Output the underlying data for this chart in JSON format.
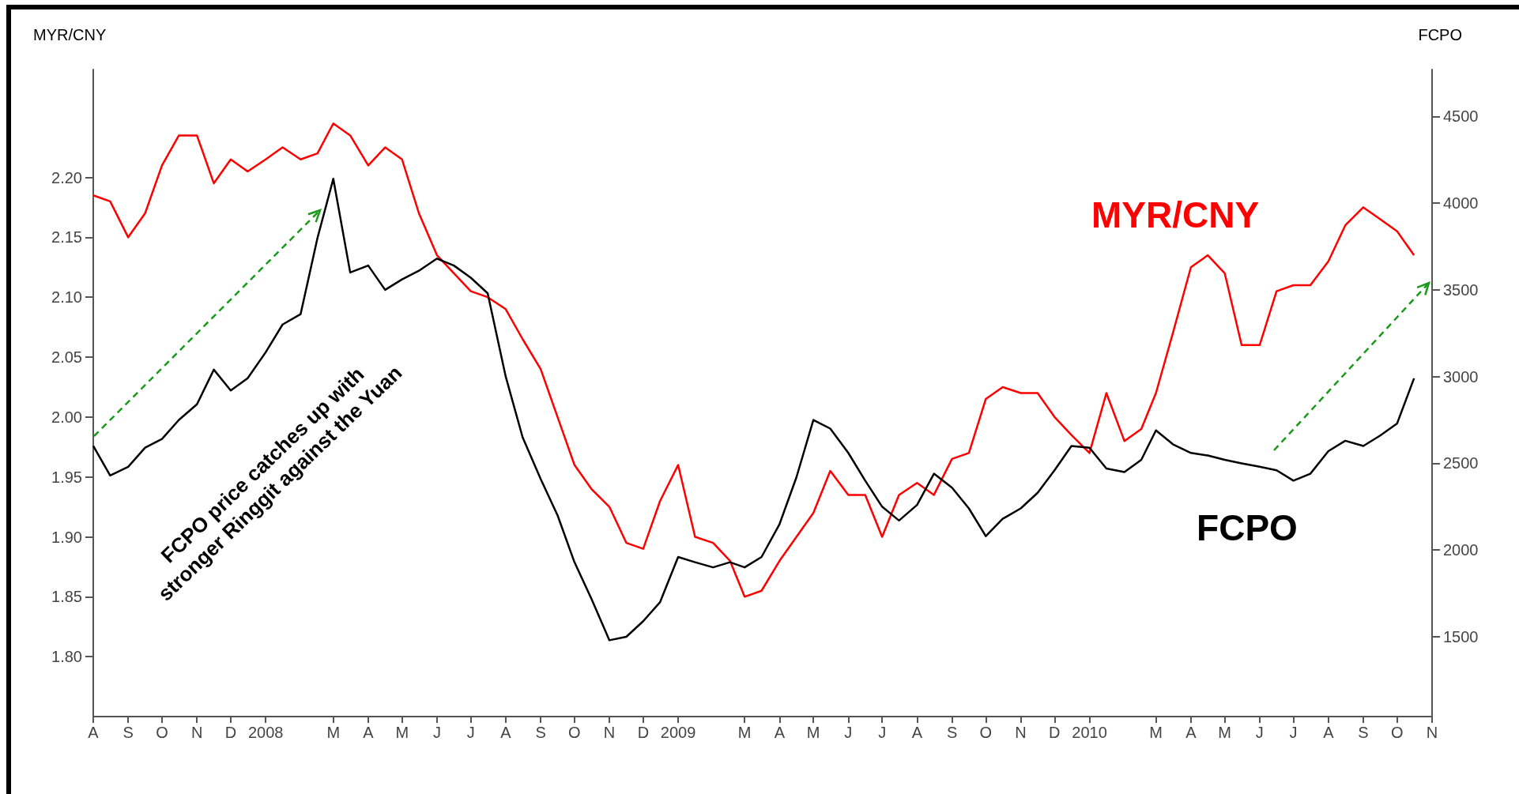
{
  "chart_data": {
    "type": "line",
    "ylabel": "MYR/CNY",
    "y2label": "FCPO",
    "annotations": [
      "FCPO price catches up with\nstronger Ringgit against the Yuan"
    ],
    "x": [
      "2007-08-01",
      "2007-08-16",
      "2007-09-01",
      "2007-09-16",
      "2007-10-01",
      "2007-10-16",
      "2007-11-01",
      "2007-11-16",
      "2007-12-01",
      "2007-12-16",
      "2008-01-01",
      "2008-01-16",
      "2008-02-01",
      "2008-02-16",
      "2008-03-01",
      "2008-03-16",
      "2008-04-01",
      "2008-04-16",
      "2008-05-01",
      "2008-05-16",
      "2008-06-01",
      "2008-06-16",
      "2008-07-01",
      "2008-07-16",
      "2008-08-01",
      "2008-08-16",
      "2008-09-01",
      "2008-09-16",
      "2008-10-01",
      "2008-10-16",
      "2008-11-01",
      "2008-11-16",
      "2008-12-01",
      "2008-12-16",
      "2009-01-01",
      "2009-01-16",
      "2009-02-01",
      "2009-02-16",
      "2009-03-01",
      "2009-03-16",
      "2009-04-01",
      "2009-04-16",
      "2009-05-01",
      "2009-05-16",
      "2009-06-01",
      "2009-06-16",
      "2009-07-01",
      "2009-07-16",
      "2009-08-01",
      "2009-08-16",
      "2009-09-01",
      "2009-09-16",
      "2009-10-01",
      "2009-10-16",
      "2009-11-01",
      "2009-11-16",
      "2009-12-01",
      "2009-12-16",
      "2010-01-01",
      "2010-01-16",
      "2010-02-01",
      "2010-02-16",
      "2010-03-01",
      "2010-03-16",
      "2010-04-01",
      "2010-04-16",
      "2010-05-01",
      "2010-05-16",
      "2010-06-01",
      "2010-06-16",
      "2010-07-01",
      "2010-07-16",
      "2010-08-01",
      "2010-08-16",
      "2010-09-01",
      "2010-09-16",
      "2010-10-01",
      "2010-10-16"
    ],
    "series": [
      {
        "name": "MYR/CNY",
        "color": "#ff0000",
        "values": [
          2.185,
          2.18,
          2.15,
          2.17,
          2.21,
          2.235,
          2.235,
          2.195,
          2.215,
          2.205,
          2.215,
          2.225,
          2.215,
          2.22,
          2.245,
          2.235,
          2.21,
          2.225,
          2.215,
          2.17,
          2.135,
          2.12,
          2.105,
          2.1,
          2.09,
          2.065,
          2.04,
          2.0,
          1.96,
          1.94,
          1.925,
          1.895,
          1.89,
          1.93,
          1.96,
          1.9,
          1.895,
          1.88,
          1.85,
          1.855,
          1.88,
          1.9,
          1.92,
          1.955,
          1.935,
          1.935,
          1.9,
          1.935,
          1.945,
          1.935,
          1.965,
          1.97,
          2.015,
          2.025,
          2.02,
          2.02,
          2.0,
          1.985,
          1.97,
          2.02,
          1.98,
          1.99,
          2.02,
          2.07,
          2.125,
          2.135,
          2.12,
          2.06,
          2.06,
          2.105,
          2.11,
          2.11,
          2.13,
          2.16,
          2.175,
          2.165,
          2.155,
          2.135
        ]
      },
      {
        "name": "FCPO",
        "color": "#000000",
        "axis": "y2",
        "values": [
          2600,
          2430,
          2480,
          2590,
          2640,
          2750,
          2840,
          3040,
          2920,
          2990,
          3140,
          3300,
          3360,
          3800,
          4140,
          3600,
          3640,
          3500,
          3560,
          3610,
          3680,
          3640,
          3570,
          3480,
          3000,
          2650,
          2410,
          2200,
          1930,
          1720,
          1480,
          1500,
          1590,
          1700,
          1960,
          1930,
          1900,
          1930,
          1900,
          1960,
          2150,
          2420,
          2750,
          2700,
          2560,
          2400,
          2250,
          2170,
          2260,
          2440,
          2360,
          2240,
          2080,
          2180,
          2240,
          2330,
          2460,
          2600,
          2590,
          2470,
          2450,
          2520,
          2690,
          2610,
          2560,
          2545,
          2520,
          2500,
          2480,
          2460,
          2400,
          2440,
          2570,
          2630,
          2600,
          2660,
          2730,
          2990
        ]
      }
    ],
    "xlim": [
      "2007-08-01",
      "2010-11-01"
    ],
    "xticks": [
      {
        "value": "2007-08-01",
        "label": "A"
      },
      {
        "value": "2007-09-01",
        "label": "S"
      },
      {
        "value": "2007-10-01",
        "label": "O"
      },
      {
        "value": "2007-11-01",
        "label": "N"
      },
      {
        "value": "2007-12-01",
        "label": "D"
      },
      {
        "value": "2008-01-01",
        "label": "2008"
      },
      {
        "value": "2008-03-01",
        "label": "M"
      },
      {
        "value": "2008-04-01",
        "label": "A"
      },
      {
        "value": "2008-05-01",
        "label": "M"
      },
      {
        "value": "2008-06-01",
        "label": "J"
      },
      {
        "value": "2008-07-01",
        "label": "J"
      },
      {
        "value": "2008-08-01",
        "label": "A"
      },
      {
        "value": "2008-09-01",
        "label": "S"
      },
      {
        "value": "2008-10-01",
        "label": "O"
      },
      {
        "value": "2008-11-01",
        "label": "N"
      },
      {
        "value": "2008-12-01",
        "label": "D"
      },
      {
        "value": "2009-01-01",
        "label": "2009"
      },
      {
        "value": "2009-03-01",
        "label": "M"
      },
      {
        "value": "2009-04-01",
        "label": "A"
      },
      {
        "value": "2009-05-01",
        "label": "M"
      },
      {
        "value": "2009-06-01",
        "label": "J"
      },
      {
        "value": "2009-07-01",
        "label": "J"
      },
      {
        "value": "2009-08-01",
        "label": "A"
      },
      {
        "value": "2009-09-01",
        "label": "S"
      },
      {
        "value": "2009-10-01",
        "label": "O"
      },
      {
        "value": "2009-11-01",
        "label": "N"
      },
      {
        "value": "2009-12-01",
        "label": "D"
      },
      {
        "value": "2010-01-01",
        "label": "2010"
      },
      {
        "value": "2010-03-01",
        "label": "M"
      },
      {
        "value": "2010-04-01",
        "label": "A"
      },
      {
        "value": "2010-05-01",
        "label": "M"
      },
      {
        "value": "2010-06-01",
        "label": "J"
      },
      {
        "value": "2010-07-01",
        "label": "J"
      },
      {
        "value": "2010-08-01",
        "label": "A"
      },
      {
        "value": "2010-09-01",
        "label": "S"
      },
      {
        "value": "2010-10-01",
        "label": "O"
      },
      {
        "value": "2010-11-01",
        "label": "N"
      }
    ],
    "ylim": [
      1.75,
      2.29
    ],
    "yticks": [
      {
        "value": 1.8,
        "label": "1.80"
      },
      1.85,
      {
        "value": 1.9,
        "label": "1.90"
      },
      1.95,
      {
        "value": 2.0,
        "label": "2.00"
      },
      2.05,
      {
        "value": 2.1,
        "label": "2.10"
      },
      2.15,
      {
        "value": 2.2,
        "label": "2.20"
      }
    ],
    "y2lim": [
      1040,
      4770
    ],
    "y2ticks": [
      1500,
      2000,
      2500,
      3000,
      3500,
      4000,
      4500
    ],
    "grid": false,
    "legend": false,
    "marker": "none"
  }
}
